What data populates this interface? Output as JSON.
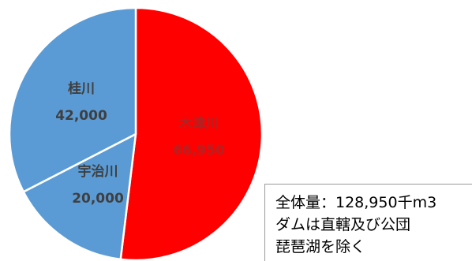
{
  "chart_data": {
    "type": "pie",
    "slices": [
      {
        "label": "木津川",
        "value_label": "66,950",
        "value": 66950,
        "color": "#ff0000",
        "text_color": "#b22222"
      },
      {
        "label": "宇治川",
        "value_label": "20,000",
        "value": 20000,
        "color": "#5b9bd5",
        "text_color": "#3f3f3f"
      },
      {
        "label": "桂川",
        "value_label": "42,000",
        "value": 42000,
        "color": "#5b9bd5",
        "text_color": "#3f3f3f"
      }
    ],
    "start_angle_deg": 0,
    "direction": "clockwise",
    "slice_border_color": "#ffffff",
    "legend": "none"
  },
  "note": {
    "lines": [
      "全体量：128,950千m3",
      "ダムは直轄及び公団",
      "琵琶湖を除く"
    ]
  }
}
